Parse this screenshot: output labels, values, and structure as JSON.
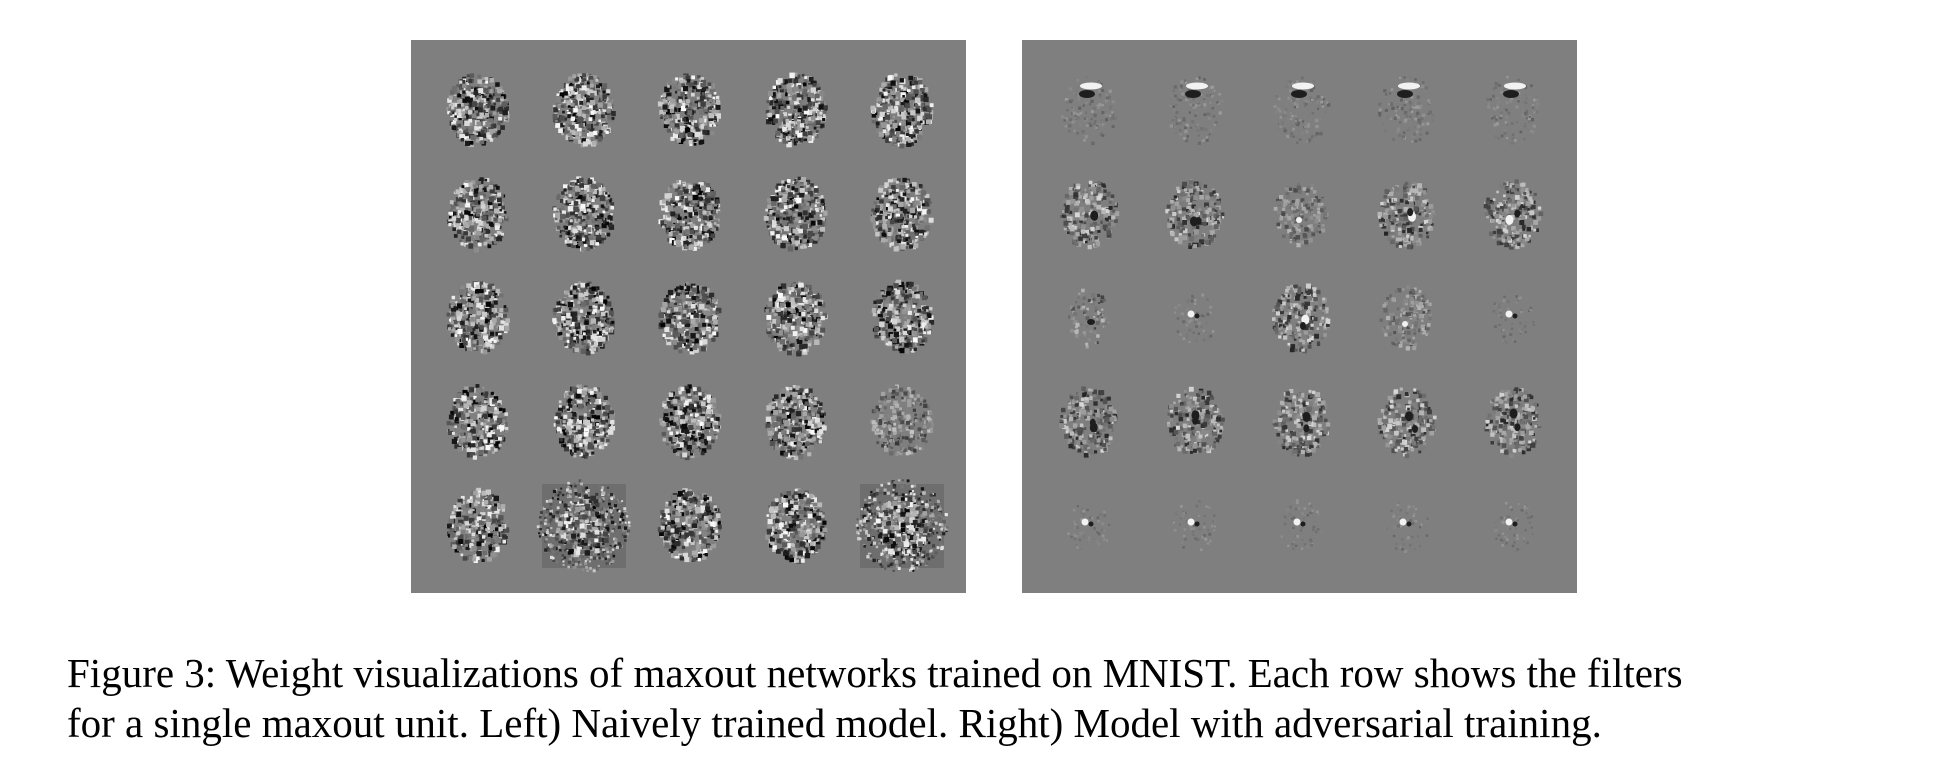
{
  "figure": {
    "background_color": "#ffffff",
    "panel_background": "#7f7f7f",
    "grid": {
      "rows": 5,
      "cols": 5
    },
    "left_panel": {
      "description_key": "naively-trained",
      "filters": [
        [
          "dense",
          "dense",
          "dense",
          "dense",
          "dense"
        ],
        [
          "dense",
          "dense",
          "dense",
          "dense",
          "dense"
        ],
        [
          "dense",
          "dense",
          "dense",
          "dense",
          "dense"
        ],
        [
          "dense",
          "dense",
          "dense",
          "dense",
          "dense-faint"
        ],
        [
          "dense",
          "noise-dark",
          "dense",
          "dense",
          "noise-dark"
        ]
      ]
    },
    "right_panel": {
      "description_key": "adversarial-training",
      "filters": [
        [
          "stroke-top",
          "stroke-top",
          "stroke-top",
          "stroke-top",
          "stroke-top"
        ],
        [
          "digit",
          "digit",
          "digit-faint",
          "digit",
          "digit"
        ],
        [
          "sparse",
          "dot",
          "digit",
          "digit-faint",
          "dot"
        ],
        [
          "digit",
          "digit",
          "digit",
          "digit",
          "digit"
        ],
        [
          "dot",
          "dot",
          "dot",
          "dot",
          "dot"
        ]
      ]
    },
    "caption": {
      "line1": "Figure 3: Weight visualizations of maxout networks trained on MNIST. Each row shows the filters",
      "line2": "for a single maxout unit. Left) Naively trained model. Right) Model with adversarial training."
    }
  }
}
